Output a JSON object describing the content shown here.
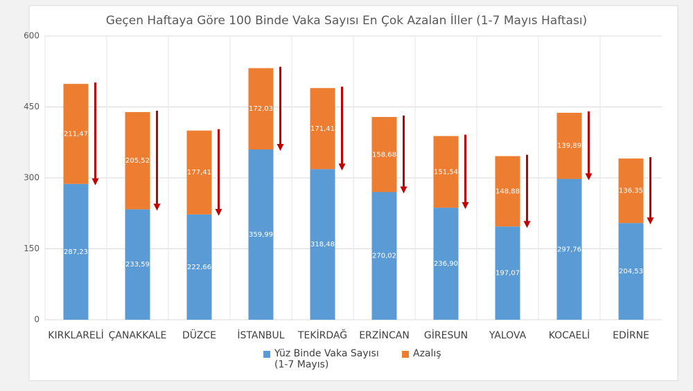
{
  "chart_data": {
    "type": "stacked_bar",
    "title": "Geçen Haftaya Göre 100 Binde Vaka Sayısı En Çok Azalan İller (1-7 Mayıs Haftası)",
    "categories": [
      "KIRKLARELİ",
      "ÇANAKKALE",
      "DÜZCE",
      "İSTANBUL",
      "TEKİRDAĞ",
      "ERZİNCAN",
      "GİRESUN",
      "YALOVA",
      "KOCAELİ",
      "EDİRNE"
    ],
    "series": [
      {
        "name": "Yüz Binde Vaka Sayısı (1-7 Mayıs)",
        "color": "#5b9bd5",
        "values": [
          287.23,
          233.59,
          222.66,
          359.99,
          318.48,
          270.02,
          236.9,
          197.07,
          297.76,
          204.53
        ],
        "value_labels": [
          "287,23",
          "233,59",
          "222,66",
          "359,99",
          "318,48",
          "270,02",
          "236,90",
          "197,07",
          "297,76",
          "204,53"
        ]
      },
      {
        "name": "Azalış",
        "color": "#ed7d31",
        "values": [
          211.47,
          205.52,
          177.41,
          172.03,
          171.41,
          158.68,
          151.54,
          148.88,
          139.89,
          136.35
        ],
        "value_labels": [
          "211,47",
          "205,52",
          "177,41",
          "172,03",
          "171,41",
          "158,68",
          "151,54",
          "148,88",
          "139,89",
          "136,35"
        ]
      }
    ],
    "ylim": [
      0,
      600
    ],
    "yticks": [
      0,
      150,
      300,
      450,
      600
    ],
    "grid": true,
    "legend": "bottom",
    "arrow_color": "#c00000"
  }
}
